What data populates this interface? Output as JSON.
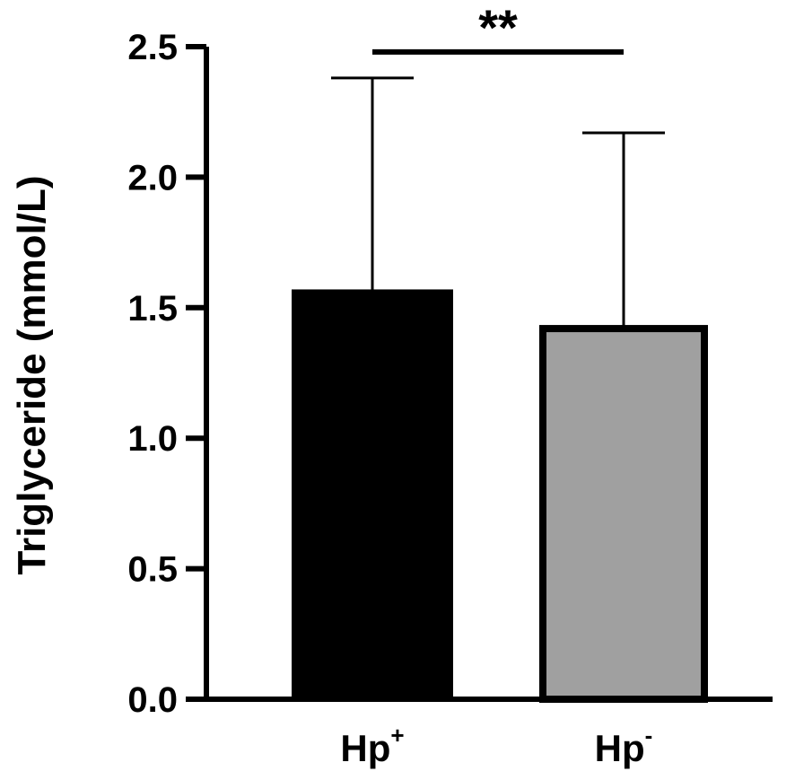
{
  "chart_data": {
    "type": "bar",
    "title": "",
    "xlabel": "",
    "ylabel": "Triglyceride (mmol/L)",
    "ylim": [
      0,
      2.5
    ],
    "yticks": [
      "0.0",
      "0.5",
      "1.0",
      "1.5",
      "2.0",
      "2.5"
    ],
    "categories": [
      {
        "base": "Hp",
        "sup": "+"
      },
      {
        "base": "Hp",
        "sup": "-"
      }
    ],
    "values": [
      1.57,
      1.42
    ],
    "errors_upper": [
      2.38,
      2.17
    ],
    "colors": [
      "#000000",
      "#a0a0a0"
    ],
    "significance": {
      "label": "**",
      "between": [
        0,
        1
      ],
      "y": 2.48
    },
    "grid": false,
    "legend": "none"
  }
}
